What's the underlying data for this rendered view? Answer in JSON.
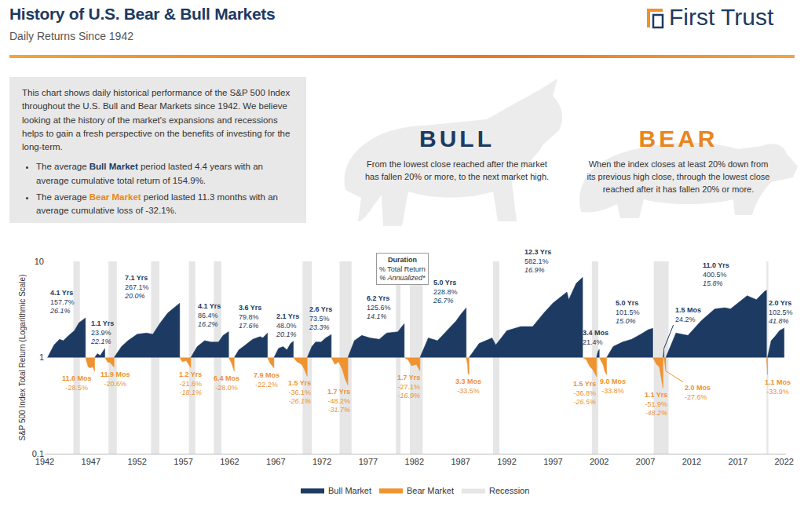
{
  "header": {
    "title": "History of U.S. Bear & Bull Markets",
    "subtitle": "Daily Returns Since 1942",
    "brand": "First Trust"
  },
  "intro": {
    "text": "This chart shows daily historical performance of the S&P 500 Index throughout the U.S. Bull and Bear Markets since 1942. We believe looking at the history of the market's expansions and recessions helps to gain a fresh perspective on the benefits of investing for the long-term.",
    "bullets": [
      {
        "lead": "The average ",
        "term": "Bull Market",
        "rest": " period lasted 4.4 years with an average cumulative total return of 154.9%."
      },
      {
        "lead": "The average ",
        "term": "Bear Market",
        "rest": " period lasted 11.3 months with an average cumulative loss of -32.1%."
      }
    ]
  },
  "definitions": [
    {
      "term": "BULL",
      "text": "From the lowest close reached after the market has fallen 20% or more, to the next market high."
    },
    {
      "term": "BEAR",
      "text": "When the index closes at least 20% down from its previous high close, through the lowest close reached after it has fallen 20% or more."
    }
  ],
  "chart_data": {
    "type": "area",
    "ylabel": "S&P 500 Index Total Return (Logarithmic Scale)",
    "log": "y",
    "grid": false,
    "legend": "bottom",
    "xlim": [
      1942,
      2022.2
    ],
    "xticks": [
      1942,
      1947,
      1952,
      1957,
      1962,
      1967,
      1972,
      1977,
      1982,
      1987,
      1992,
      1997,
      2002,
      2007,
      2012,
      2017,
      2022
    ],
    "ylim": [
      0.1,
      10
    ],
    "yticks": [
      0.1,
      1,
      10
    ],
    "key": {
      "title": "Duration",
      "total": "% Total Return",
      "annualized": "% Annualized*"
    },
    "series": [
      {
        "name": "Bull Market",
        "type": "area",
        "color": "#1d3a62",
        "periods": [
          {
            "x": [
              1942.3,
              1943.0,
              1943.6,
              1944.0,
              1944.6,
              1945.2,
              1945.7,
              1946.1,
              1946.4,
              1946.4
            ],
            "values": [
              1,
              1.35,
              1.55,
              1.5,
              1.7,
              1.9,
              2.3,
              2.45,
              2.58,
              1
            ],
            "duration": "4.1 Yrs",
            "total": "157.7%",
            "annualized": "26.1%"
          },
          {
            "x": [
              1947.4,
              1947.7,
              1948.0,
              1948.3,
              1948.5,
              1948.5
            ],
            "values": [
              1,
              1.1,
              1.05,
              1.15,
              1.24,
              1
            ],
            "duration": "1.1 Yrs",
            "total": "23.9%",
            "annualized": "22.1%"
          },
          {
            "x": [
              1949.5,
              1950.3,
              1951.0,
              1952.0,
              1953.0,
              1953.7,
              1954.5,
              1955.3,
              1956.0,
              1956.6,
              1956.6
            ],
            "values": [
              1,
              1.3,
              1.5,
              1.75,
              1.8,
              1.75,
              2.3,
              2.9,
              3.3,
              3.67,
              1
            ],
            "duration": "7.1 Yrs",
            "total": "267.1%",
            "annualized": "20.0%"
          },
          {
            "x": [
              1957.8,
              1958.5,
              1959.3,
              1960.0,
              1960.8,
              1961.3,
              1961.9,
              1961.9
            ],
            "values": [
              1,
              1.3,
              1.5,
              1.45,
              1.45,
              1.7,
              1.86,
              1
            ],
            "duration": "4.1 Yrs",
            "total": "86.4%",
            "annualized": "16.2%"
          },
          {
            "x": [
              1962.5,
              1963.0,
              1963.7,
              1964.5,
              1965.3,
              1965.6,
              1966.1,
              1966.1
            ],
            "values": [
              1,
              1.2,
              1.35,
              1.55,
              1.65,
              1.6,
              1.8,
              1
            ],
            "duration": "3.6 Yrs",
            "total": "79.8%",
            "annualized": "17.6%"
          },
          {
            "x": [
              1966.8,
              1967.3,
              1967.8,
              1968.2,
              1968.6,
              1968.9,
              1968.9
            ],
            "values": [
              1,
              1.25,
              1.3,
              1.2,
              1.4,
              1.48,
              1
            ],
            "duration": "2.1 Yrs",
            "total": "48.0%",
            "annualized": "20.1%"
          },
          {
            "x": [
              1970.4,
              1970.9,
              1971.3,
              1971.9,
              1972.4,
              1973.0,
              1973.0
            ],
            "values": [
              1,
              1.3,
              1.45,
              1.45,
              1.6,
              1.735,
              1
            ],
            "duration": "2.6 Yrs",
            "total": "73.5%",
            "annualized": "23.3%"
          },
          {
            "x": [
              1974.8,
              1975.5,
              1976.3,
              1977.2,
              1978.2,
              1979.0,
              1980.2,
              1980.9,
              1980.9
            ],
            "values": [
              1,
              1.5,
              1.7,
              1.6,
              1.55,
              1.8,
              1.85,
              2.256,
              1
            ],
            "duration": "6.2 Yrs",
            "total": "125.6%",
            "annualized": "14.1%"
          },
          {
            "x": [
              1982.6,
              1983.5,
              1984.5,
              1985.5,
              1986.5,
              1987.0,
              1987.6,
              1987.6
            ],
            "values": [
              1,
              1.6,
              1.5,
              1.9,
              2.4,
              2.8,
              3.29,
              1
            ],
            "duration": "5.0 Yrs",
            "total": "228.8%",
            "annualized": "26.7%"
          },
          {
            "x": [
              1987.9,
              1989.0,
              1990.4,
              1990.8,
              1992.0,
              1993.5,
              1994.8,
              1996.0,
              1997.0,
              1998.5,
              1998.7,
              1999.5,
              2000.2,
              2000.2
            ],
            "values": [
              1,
              1.4,
              1.6,
              1.35,
              1.9,
              2.1,
              2.1,
              2.9,
              3.7,
              4.8,
              4.0,
              5.9,
              6.82,
              1
            ],
            "duration": "12.3 Yrs",
            "total": "582.1%",
            "annualized": "16.9%"
          },
          {
            "x": [
              2001.7,
              2001.85,
              2002.0,
              2002.0
            ],
            "values": [
              1,
              1.15,
              1.214,
              1
            ],
            "duration": "3.4 Mos",
            "total": "21.4%"
          },
          {
            "x": [
              2002.8,
              2003.5,
              2004.5,
              2005.5,
              2006.5,
              2007.3,
              2007.8,
              2007.8
            ],
            "values": [
              1,
              1.3,
              1.45,
              1.55,
              1.75,
              1.95,
              2.015,
              1
            ],
            "duration": "5.0 Yrs",
            "total": "101.5%",
            "annualized": "15.0%"
          },
          {
            "x": [
              2008.9,
              2009.0,
              2009.0
            ],
            "values": [
              1,
              1.242,
              1
            ],
            "duration": "1.5 Mos",
            "total": "24.2%"
          },
          {
            "x": [
              2009.2,
              2010.3,
              2011.6,
              2013.0,
              2014.5,
              2015.6,
              2016.2,
              2017.5,
              2018.0,
              2019.0,
              2019.9,
              2020.1,
              2020.1
            ],
            "values": [
              1,
              1.8,
              1.7,
              2.4,
              3.2,
              3.3,
              3.2,
              4.0,
              4.4,
              4.0,
              4.9,
              5.005,
              1
            ],
            "duration": "11.0 Yrs",
            "total": "400.5%",
            "annualized": "15.8%"
          },
          {
            "x": [
              2020.2,
              2020.6,
              2021.0,
              2021.5,
              2022.0,
              2022.0
            ],
            "values": [
              1,
              1.5,
              1.65,
              1.9,
              2.025,
              1
            ],
            "duration": "2.0 Yrs",
            "total": "102.5%",
            "annualized": "41.8%"
          }
        ]
      },
      {
        "name": "Bear Market",
        "type": "area",
        "color": "#ee9330",
        "periods": [
          {
            "x": [
              1946.4,
              1946.7,
              1946.9,
              1947.2,
              1947.4,
              1947.4
            ],
            "values": [
              1,
              0.8,
              0.78,
              0.8,
              0.715,
              1
            ],
            "duration": "11.6 Mos",
            "total": "-28.5%"
          },
          {
            "x": [
              1948.5,
              1948.8,
              1949.1,
              1949.5,
              1949.5
            ],
            "values": [
              1,
              0.9,
              0.88,
              0.794,
              1
            ],
            "duration": "11.9 Mos",
            "total": "-20.6%"
          },
          {
            "x": [
              1956.6,
              1956.9,
              1957.3,
              1957.6,
              1957.8,
              1957.8
            ],
            "values": [
              1,
              0.9,
              0.93,
              0.85,
              0.784,
              1
            ],
            "duration": "1.2 Yrs",
            "total": "-21.6%",
            "annualized": "-18.1%"
          },
          {
            "x": [
              1961.9,
              1962.2,
              1962.5,
              1962.5
            ],
            "values": [
              1,
              0.88,
              0.72,
              1
            ],
            "duration": "6.4 Mos",
            "total": "-28.0%"
          },
          {
            "x": [
              1966.1,
              1966.4,
              1966.8,
              1966.8
            ],
            "values": [
              1,
              0.87,
              0.778,
              1
            ],
            "duration": "7.9 Mos",
            "total": "-22.2%"
          },
          {
            "x": [
              1968.9,
              1969.3,
              1969.8,
              1970.1,
              1970.4,
              1970.4
            ],
            "values": [
              1,
              0.9,
              0.85,
              0.75,
              0.639,
              1
            ],
            "duration": "1.5 Yrs",
            "total": "-36.1%",
            "annualized": "-26.1%"
          },
          {
            "x": [
              1973.0,
              1973.4,
              1973.8,
              1974.2,
              1974.5,
              1974.8,
              1974.8
            ],
            "values": [
              1,
              0.85,
              0.9,
              0.75,
              0.6,
              0.518,
              1
            ],
            "duration": "1.7 Yrs",
            "total": "-48.2%",
            "annualized": "-31.7%"
          },
          {
            "x": [
              1980.9,
              1981.3,
              1981.7,
              1982.2,
              1982.6,
              1982.6
            ],
            "values": [
              1,
              0.95,
              0.82,
              0.85,
              0.729,
              1
            ],
            "duration": "1.7 Yrs",
            "total": "-27.1%",
            "annualized": "-16.9%"
          },
          {
            "x": [
              1987.6,
              1987.75,
              1987.8,
              1987.9,
              1987.9
            ],
            "values": [
              1,
              0.85,
              0.68,
              0.665,
              1
            ],
            "duration": "3.3 Mos",
            "total": "-33.5%"
          },
          {
            "x": [
              2000.2,
              2000.6,
              2001.0,
              2001.3,
              2001.7,
              2001.7
            ],
            "values": [
              1,
              0.95,
              0.8,
              0.75,
              0.632,
              1
            ],
            "duration": "1.5 Yrs",
            "total": "-36.8%",
            "annualized": "-26.5%"
          },
          {
            "x": [
              2002.0,
              2002.4,
              2002.6,
              2002.8,
              2002.8
            ],
            "values": [
              1,
              0.85,
              0.72,
              0.662,
              1
            ],
            "duration": "9.0 Mos",
            "total": "-33.8%"
          },
          {
            "x": [
              2007.8,
              2008.2,
              2008.5,
              2008.75,
              2008.9,
              2008.9
            ],
            "values": [
              1,
              0.85,
              0.8,
              0.6,
              0.481,
              1
            ],
            "duration": "1.1 Yrs",
            "total": "-51.9%",
            "annualized": "-48.2%"
          },
          {
            "x": [
              2009.0,
              2009.1,
              2009.2,
              2009.2
            ],
            "values": [
              1,
              0.85,
              0.724,
              1
            ],
            "duration": "2.0 Mos",
            "total": "-27.6%"
          },
          {
            "x": [
              2020.1,
              2020.2,
              2020.2
            ],
            "values": [
              1,
              0.661,
              1
            ],
            "duration": "1.1 Mos",
            "total": "-33.9%"
          }
        ]
      },
      {
        "name": "Recession",
        "type": "band",
        "color": "#e6e6e6",
        "periods": [
          {
            "x": [
              1945.1,
              1945.8
            ]
          },
          {
            "x": [
              1948.9,
              1949.8
            ]
          },
          {
            "x": [
              1953.5,
              1954.4
            ]
          },
          {
            "x": [
              1957.6,
              1958.3
            ]
          },
          {
            "x": [
              1960.3,
              1961.1
            ]
          },
          {
            "x": [
              1969.9,
              1970.9
            ]
          },
          {
            "x": [
              1973.9,
              1975.2
            ]
          },
          {
            "x": [
              1980.0,
              1980.5
            ]
          },
          {
            "x": [
              1981.5,
              1982.9
            ]
          },
          {
            "x": [
              1990.5,
              1991.2
            ]
          },
          {
            "x": [
              2001.2,
              2001.9
            ]
          },
          {
            "x": [
              2007.9,
              2009.5
            ]
          },
          {
            "x": [
              2020.1,
              2020.3
            ]
          }
        ]
      }
    ]
  }
}
